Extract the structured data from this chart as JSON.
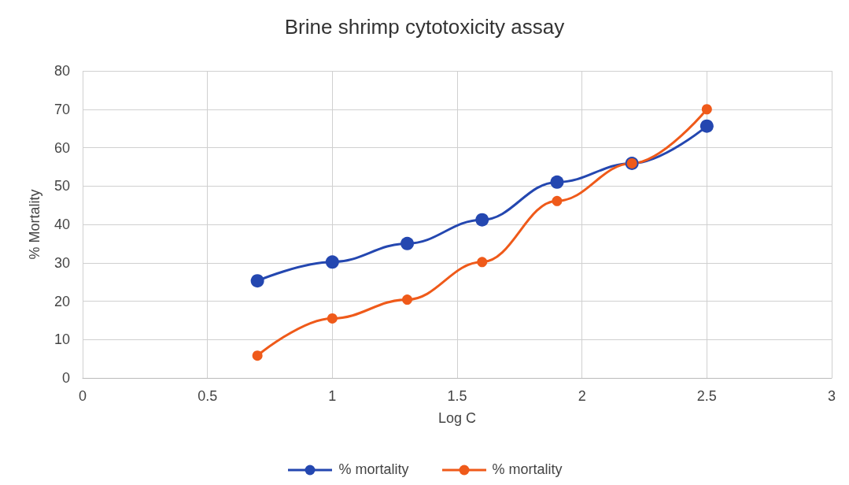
{
  "chart_data": {
    "type": "line",
    "title": "Brine shrimp cytotoxicity assay",
    "xlabel": "Log C",
    "ylabel": "% Mortality",
    "x": [
      0.7,
      1,
      1.3,
      1.6,
      1.9,
      2.2,
      2.5
    ],
    "series": [
      {
        "name": "% mortality",
        "color": "#2447b0",
        "values": [
          25.3,
          30.2,
          35,
          41.2,
          51,
          55.9,
          65.6
        ]
      },
      {
        "name": "% mortality",
        "color": "#ef5a1a",
        "values": [
          5.8,
          15.5,
          20.4,
          30.2,
          46.1,
          55.9,
          70
        ]
      }
    ],
    "xlim": [
      0,
      3
    ],
    "xticks": [
      0,
      0.5,
      1,
      1.5,
      2,
      2.5,
      3
    ],
    "ylim": [
      0,
      80
    ],
    "yticks": [
      0,
      10,
      20,
      30,
      40,
      50,
      60,
      70,
      80
    ],
    "grid": true,
    "legend": "bottom",
    "marker": "circle",
    "line_style": "solid"
  }
}
